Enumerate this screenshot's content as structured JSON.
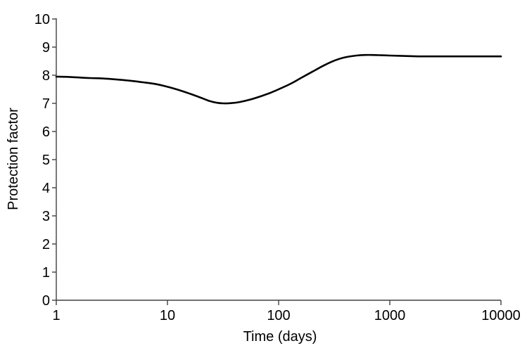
{
  "chart_data": {
    "type": "line",
    "title": "",
    "xlabel": "Time (days)",
    "ylabel": "Protection factor",
    "x_scale": "log",
    "xlim": [
      1,
      10000
    ],
    "ylim": [
      0,
      10
    ],
    "grid": false,
    "legend": "none",
    "x_ticks": {
      "values": [
        1,
        10,
        100,
        1000,
        10000
      ],
      "labels": [
        "1",
        "10",
        "100",
        "1000",
        "10000"
      ]
    },
    "y_ticks": {
      "values": [
        0,
        1,
        2,
        3,
        4,
        5,
        6,
        7,
        8,
        9,
        10
      ],
      "labels": [
        "0",
        "1",
        "2",
        "3",
        "4",
        "5",
        "6",
        "7",
        "8",
        "9",
        "10"
      ]
    },
    "series": [
      {
        "name": "Protection factor",
        "color": "#000000",
        "points": [
          [
            1,
            7.95
          ],
          [
            1.3,
            7.94
          ],
          [
            1.6,
            7.92
          ],
          [
            2,
            7.9
          ],
          [
            2.5,
            7.89
          ],
          [
            3,
            7.87
          ],
          [
            4,
            7.83
          ],
          [
            5,
            7.79
          ],
          [
            6,
            7.75
          ],
          [
            8,
            7.68
          ],
          [
            10,
            7.59
          ],
          [
            13,
            7.46
          ],
          [
            16,
            7.34
          ],
          [
            20,
            7.2
          ],
          [
            24,
            7.08
          ],
          [
            28,
            7.02
          ],
          [
            32,
            7.0
          ],
          [
            38,
            7.01
          ],
          [
            45,
            7.05
          ],
          [
            55,
            7.13
          ],
          [
            70,
            7.26
          ],
          [
            85,
            7.38
          ],
          [
            100,
            7.5
          ],
          [
            130,
            7.71
          ],
          [
            160,
            7.91
          ],
          [
            200,
            8.12
          ],
          [
            250,
            8.33
          ],
          [
            300,
            8.48
          ],
          [
            350,
            8.58
          ],
          [
            400,
            8.64
          ],
          [
            500,
            8.7
          ],
          [
            600,
            8.72
          ],
          [
            700,
            8.72
          ],
          [
            850,
            8.71
          ],
          [
            1000,
            8.7
          ],
          [
            1500,
            8.68
          ],
          [
            2000,
            8.67
          ],
          [
            3000,
            8.67
          ],
          [
            5000,
            8.67
          ],
          [
            7000,
            8.67
          ],
          [
            10000,
            8.67
          ]
        ]
      }
    ]
  },
  "colors": {
    "background": "#ffffff",
    "line": "#000000",
    "axis": "#404040",
    "text": "#000000"
  }
}
